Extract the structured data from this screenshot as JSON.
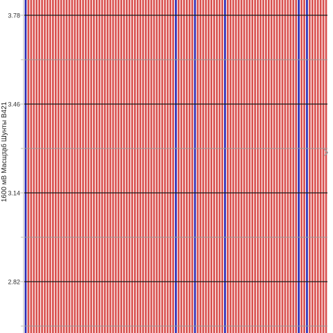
{
  "chart_data": {
    "type": "bar",
    "ylabel": "1600 мВ Масштаб  Шунты В421",
    "yticks": [
      "3.78",
      "3.46",
      "3.14",
      "2.82"
    ],
    "tick_values": [
      3.78,
      3.46,
      3.14,
      2.82
    ],
    "ylim": [
      2.66,
      3.9
    ],
    "bar_count": 111,
    "value_all": 4.0,
    "highlight_indices": [
      0,
      55,
      62,
      73,
      100,
      103
    ],
    "colors": {
      "normal": "#d9504e",
      "highlight": "#2b2bb5",
      "grid_major": "#1a1a1a",
      "grid_minor": "#9a9a9a",
      "axis": "#bdbdbd"
    },
    "grid": true
  },
  "nav": {
    "prev_icon": "chevron-left-icon",
    "next_icon": "chevron-right-icon",
    "prev_glyph": "‹",
    "next_glyph": "›"
  }
}
